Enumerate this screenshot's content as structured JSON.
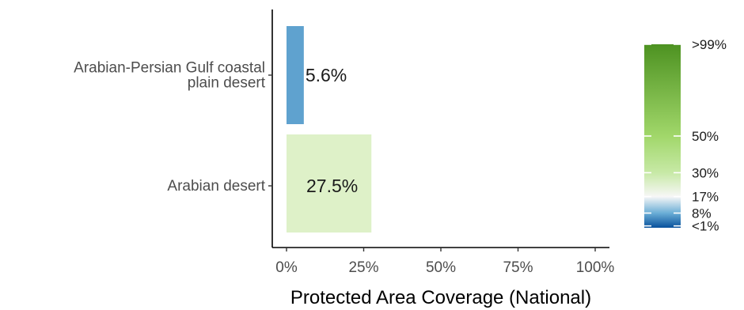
{
  "chart_data": {
    "type": "bar",
    "orientation": "horizontal",
    "categories": [
      "Arabian-Persian Gulf coastal\nplain desert",
      "Arabian desert"
    ],
    "values": [
      5.6,
      27.5
    ],
    "value_labels": [
      "5.6%",
      "27.5%"
    ],
    "bar_colors": [
      "#5fa2cf",
      "#def1c8"
    ],
    "xlabel": "Protected Area Coverage (National)",
    "ylabel": "",
    "xlim": [
      0,
      100
    ],
    "x_ticks": [
      0,
      25,
      50,
      75,
      100
    ],
    "x_tick_labels": [
      "0%",
      "25%",
      "50%",
      "75%",
      "100%"
    ],
    "grid": false,
    "legend": {
      "type": "colorbar",
      "placement": "right",
      "stops": [
        {
          "value": 0,
          "color": "#08519c"
        },
        {
          "value": 8,
          "color": "#6baed6"
        },
        {
          "value": 17,
          "color": "#f7f7f7"
        },
        {
          "value": 30,
          "color": "#c7e9a6"
        },
        {
          "value": 50,
          "color": "#a1d76a"
        },
        {
          "value": 100,
          "color": "#4d9221"
        }
      ],
      "labels": [
        {
          "value": 100,
          "text": ">99%"
        },
        {
          "value": 50,
          "text": "50%"
        },
        {
          "value": 30,
          "text": "30%"
        },
        {
          "value": 17,
          "text": "17%"
        },
        {
          "value": 8,
          "text": "8%"
        },
        {
          "value": 1,
          "text": "<1%"
        }
      ]
    }
  }
}
